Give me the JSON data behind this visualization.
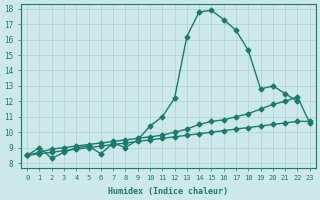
{
  "xlabel": "Humidex (Indice chaleur)",
  "xlim": [
    0,
    23
  ],
  "ylim": [
    8,
    18
  ],
  "xticks": [
    0,
    1,
    2,
    3,
    4,
    5,
    6,
    7,
    8,
    9,
    10,
    11,
    12,
    13,
    14,
    15,
    16,
    17,
    18,
    19,
    20,
    21,
    22,
    23
  ],
  "yticks": [
    8,
    9,
    10,
    11,
    12,
    13,
    14,
    15,
    16,
    17,
    18
  ],
  "bg_color": "#cce8e8",
  "line_color": "#1a7a6e",
  "grid_color": "#aad0d0",
  "curve1_x": [
    0,
    1,
    2,
    3,
    4,
    5,
    6,
    7,
    8,
    9,
    10,
    11,
    12,
    13,
    14,
    15,
    16,
    17,
    18,
    19,
    20,
    21,
    22
  ],
  "curve1_y": [
    8.5,
    9.0,
    8.3,
    8.7,
    9.0,
    9.1,
    8.6,
    9.3,
    9.0,
    9.5,
    10.4,
    11.0,
    12.2,
    16.2,
    17.8,
    17.9,
    17.3,
    16.6,
    15.3,
    12.8,
    13.0,
    12.5,
    12.0
  ],
  "curve2_x": [
    0,
    1,
    2,
    3,
    4,
    5,
    6,
    7,
    8,
    9,
    10,
    11,
    12,
    13,
    14,
    15,
    16,
    17,
    18,
    19,
    20,
    21,
    22,
    23
  ],
  "curve2_y": [
    8.5,
    8.7,
    8.9,
    9.0,
    9.1,
    9.2,
    9.3,
    9.4,
    9.5,
    9.6,
    9.7,
    9.8,
    10.0,
    10.2,
    10.5,
    10.7,
    10.8,
    11.0,
    11.2,
    11.5,
    11.8,
    12.0,
    12.3,
    10.6
  ],
  "curve3_x": [
    0,
    1,
    2,
    3,
    4,
    5,
    6,
    7,
    8,
    9,
    10,
    11,
    12,
    13,
    14,
    15,
    16,
    17,
    18,
    19,
    20,
    21,
    22,
    23
  ],
  "curve3_y": [
    8.5,
    8.6,
    8.7,
    8.8,
    8.9,
    9.0,
    9.1,
    9.2,
    9.3,
    9.4,
    9.5,
    9.6,
    9.7,
    9.8,
    9.9,
    10.0,
    10.1,
    10.2,
    10.3,
    10.4,
    10.5,
    10.6,
    10.7,
    10.7
  ]
}
